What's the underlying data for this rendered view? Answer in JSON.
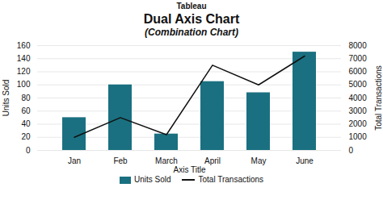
{
  "chart_data": {
    "type": "combo",
    "annotations": [
      "Tableau"
    ],
    "title": "Dual Axis Chart",
    "subtitle": "(Combination Chart)",
    "xlabel": "Axis Title",
    "ylabel": "Units Sold",
    "y2label": "Total Transactions",
    "categories": [
      "Jan",
      "Feb",
      "March",
      "April",
      "May",
      "June"
    ],
    "series": [
      {
        "name": "Units Sold",
        "type": "bar",
        "color": "#1a7080",
        "values": [
          50,
          100,
          25,
          105,
          88,
          150
        ]
      },
      {
        "name": "Total Transactions",
        "type": "line",
        "color": "#111111",
        "axis": "y2",
        "values": [
          1000,
          2500,
          1200,
          6500,
          5000,
          7200
        ]
      }
    ],
    "ylim": [
      0,
      160
    ],
    "yticks": [
      0,
      20,
      40,
      60,
      80,
      100,
      120,
      140,
      160
    ],
    "y2lim": [
      0,
      8000
    ],
    "y2ticks": [
      0,
      1000,
      2000,
      3000,
      4000,
      5000,
      6000,
      7000,
      8000
    ],
    "grid": true,
    "legend": "bottom"
  }
}
